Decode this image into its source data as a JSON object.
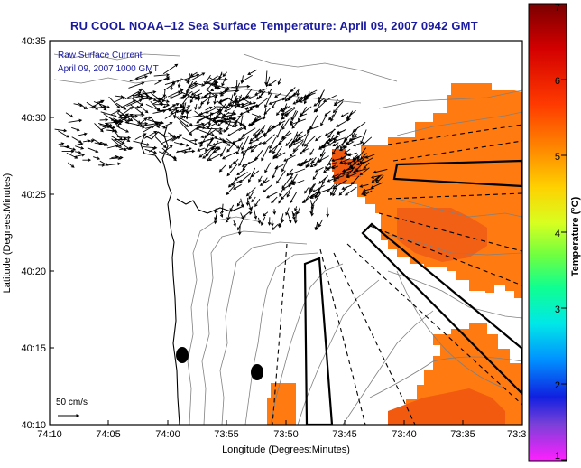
{
  "title": "RU COOL  NOAA–12  Sea Surface Temperature:  April 09, 2007 0942 GMT",
  "legend": {
    "line1": "Raw Surface Current",
    "line2": "April 09, 2007 1000 GMT",
    "scale_label": "50 cm/s"
  },
  "axes": {
    "xlabel": "Longitude (Degrees:Minutes)",
    "ylabel": "Latitude (Degrees:Minutes)",
    "x_ticks": [
      "74:10",
      "74:05",
      "74:00",
      "73:55",
      "73:50",
      "73:45",
      "73:40",
      "73:35",
      "73:3"
    ],
    "y_ticks": [
      "40:35",
      "40:30",
      "40:25",
      "40:20",
      "40:15",
      "40:10"
    ]
  },
  "colorbar": {
    "title": "Temperature (°C)",
    "ticks": [
      "7",
      "6",
      "5",
      "4",
      "3",
      "2",
      "1"
    ]
  },
  "chart_data": {
    "type": "map",
    "sst_range_c": [
      1,
      7
    ],
    "dominant_sst_c": 5.8,
    "x_range": [
      "74:10",
      "73:30"
    ],
    "y_range": [
      "40:10",
      "40:35"
    ]
  }
}
